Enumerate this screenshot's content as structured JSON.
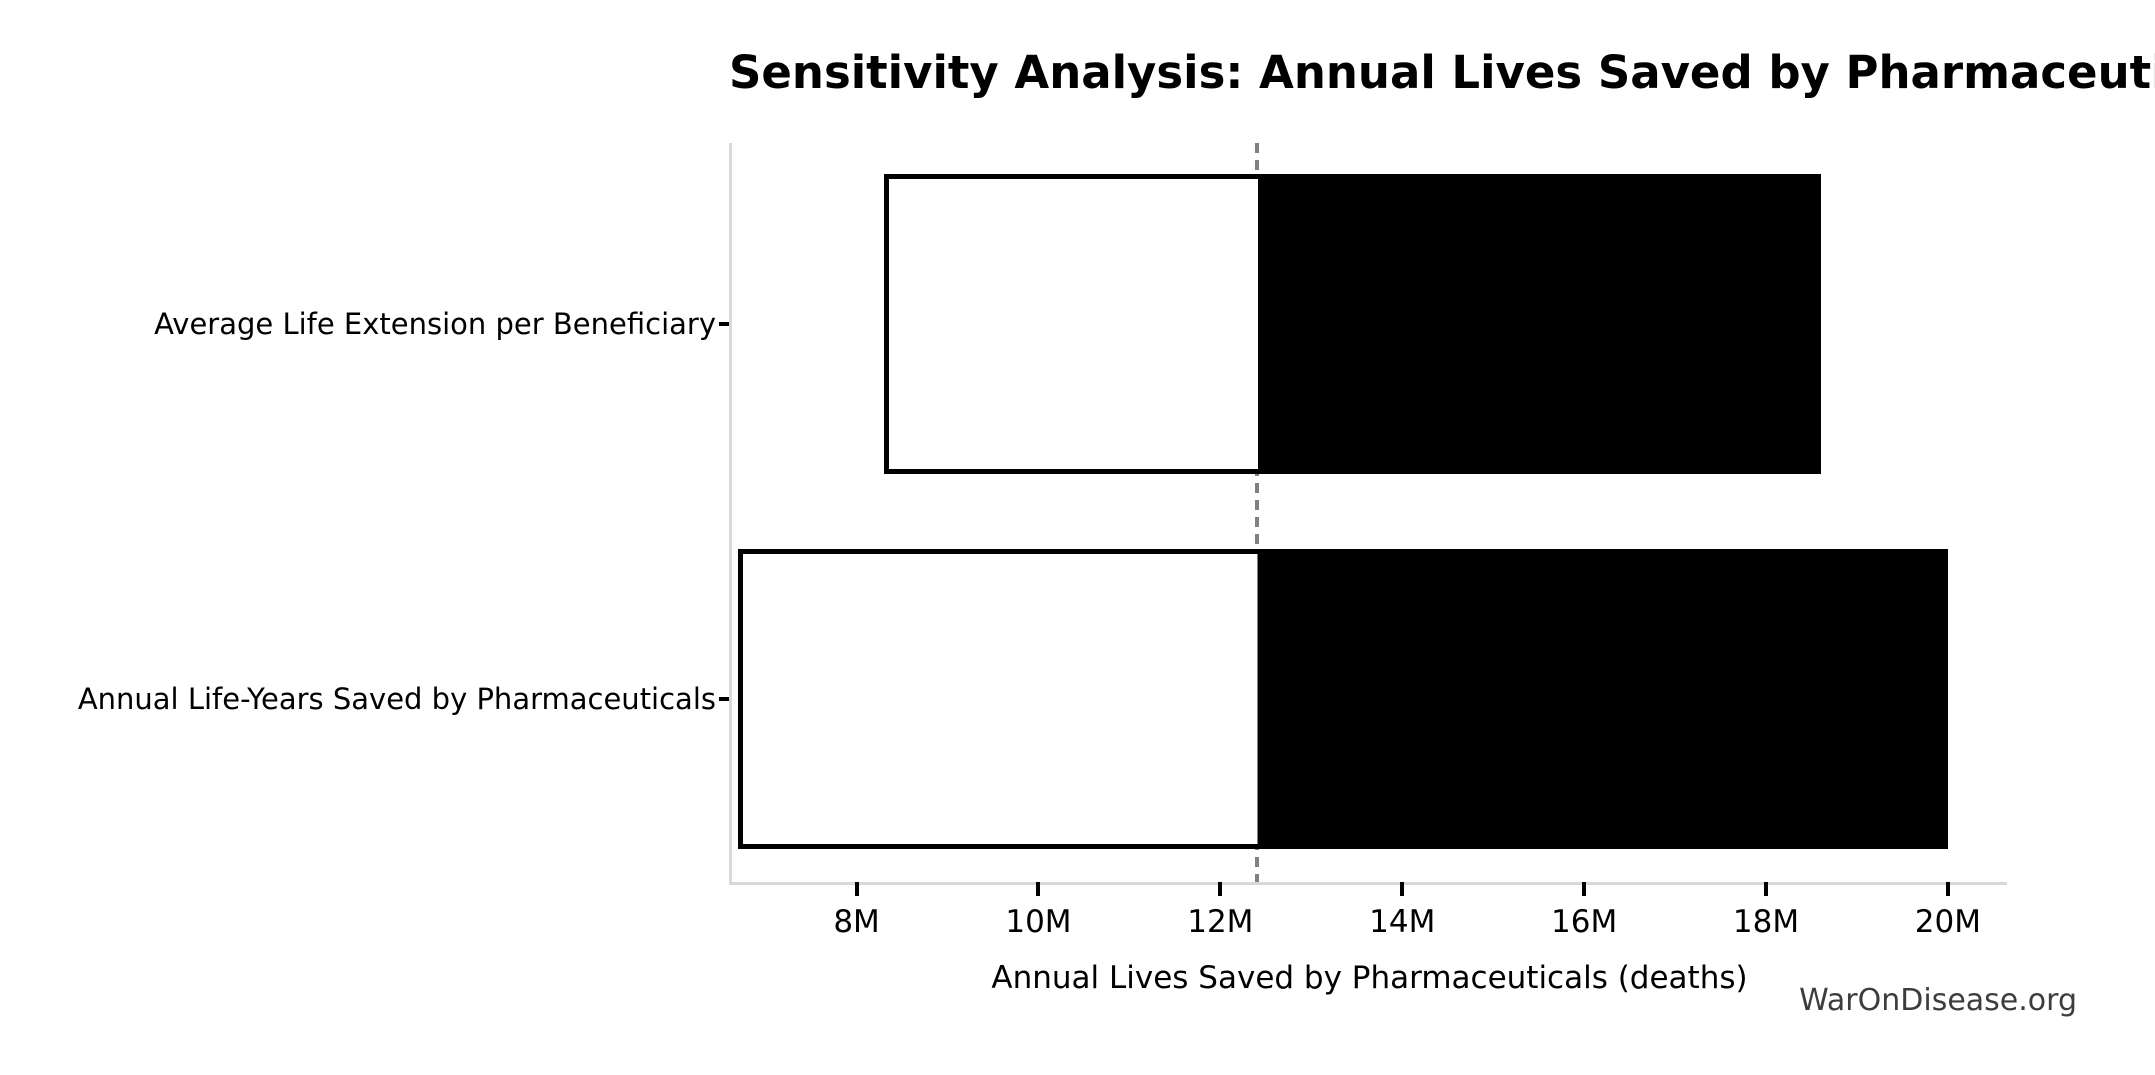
{
  "title": "Sensitivity Analysis: Annual Lives Saved by Pharmaceuticals",
  "watermark": "WarOnDisease.org",
  "chart_data": {
    "type": "bar",
    "subtype": "tornado",
    "orientation": "horizontal",
    "title": "Sensitivity Analysis: Annual Lives Saved by Pharmaceuticals",
    "xlabel": "Annual Lives Saved by Pharmaceuticals (deaths)",
    "ylabel": "",
    "grid": false,
    "legend": "none",
    "xlim": [
      6630000,
      20650000
    ],
    "x_ticks": [
      {
        "value": 8000000,
        "label": "8M"
      },
      {
        "value": 10000000,
        "label": "10M"
      },
      {
        "value": 12000000,
        "label": "12M"
      },
      {
        "value": 14000000,
        "label": "14M"
      },
      {
        "value": 16000000,
        "label": "16M"
      },
      {
        "value": 18000000,
        "label": "18M"
      },
      {
        "value": 20000000,
        "label": "20M"
      }
    ],
    "baseline_value": 12400000,
    "baseline_style": "dashed",
    "categories": [
      "Average Life Extension per Beneficiary",
      "Annual Life-Years Saved by Pharmaceuticals"
    ],
    "bars": [
      {
        "label": "Average Life Extension per Beneficiary",
        "low": 8300000,
        "high": 18600000
      },
      {
        "label": "Annual Life-Years Saved by Pharmaceuticals",
        "low": 6700000,
        "high": 20000000
      }
    ],
    "colors": {
      "low_side_fill": "#ffffff",
      "high_side_fill": "#000000",
      "bar_edge": "#000000",
      "baseline_color": "#808080",
      "spine_color": "#d9d9d9",
      "tick_color": "#000000",
      "watermark_color": "#3d3d3d"
    }
  }
}
